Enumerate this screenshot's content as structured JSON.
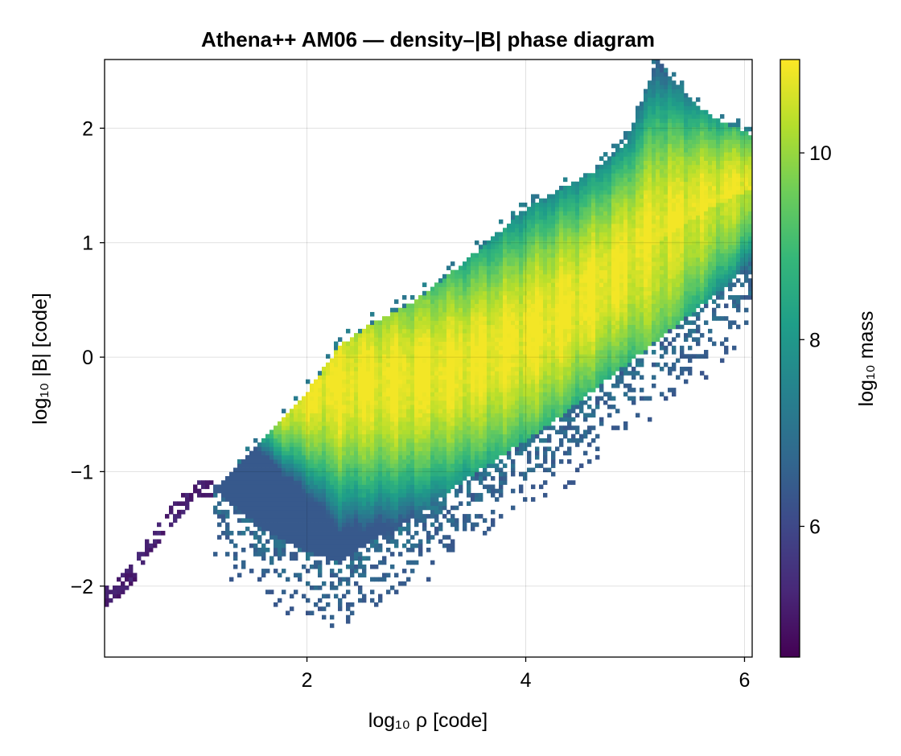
{
  "chart_data": {
    "type": "heatmap",
    "title": "Athena++ AM06 — density–|B| phase diagram",
    "xlabel": "log₁₀ ρ  [code]",
    "ylabel": "log₁₀ |B|  [code]",
    "xlim": [
      0.15,
      6.07
    ],
    "ylim": [
      -2.62,
      2.6
    ],
    "x_ticks": [
      2,
      4,
      6
    ],
    "x_tick_labels": [
      "2",
      "4",
      "6"
    ],
    "y_ticks": [
      -2,
      -1,
      0,
      1,
      2
    ],
    "y_tick_labels": [
      "−2",
      "−1",
      "0",
      "1",
      "2"
    ],
    "grid": true,
    "colormap": "viridis",
    "colorbar": {
      "label": "log₁₀ mass",
      "range": [
        4.6,
        11.0
      ],
      "ticks": [
        6,
        8,
        10
      ],
      "tick_labels": [
        "6",
        "8",
        "10"
      ]
    },
    "distribution": {
      "ridge_slope": 0.4,
      "ridge_intercept": -1.2,
      "peak_log_mass": 10.9,
      "upper_edge_points": [
        [
          1.2,
          -1.1
        ],
        [
          1.5,
          -0.8
        ],
        [
          2.0,
          -0.3
        ],
        [
          2.3,
          0.1
        ],
        [
          2.6,
          0.3
        ],
        [
          3.0,
          0.5
        ],
        [
          3.4,
          0.8
        ],
        [
          3.7,
          1.05
        ],
        [
          4.0,
          1.3
        ],
        [
          4.3,
          1.45
        ],
        [
          4.6,
          1.6
        ],
        [
          4.9,
          1.85
        ],
        [
          5.1,
          2.35
        ],
        [
          5.2,
          2.6
        ],
        [
          5.4,
          2.35
        ],
        [
          5.7,
          2.1
        ],
        [
          6.05,
          1.95
        ]
      ],
      "lower_edge_points": [
        [
          1.2,
          -1.2
        ],
        [
          1.6,
          -1.5
        ],
        [
          2.0,
          -1.7
        ],
        [
          2.3,
          -1.8
        ],
        [
          2.6,
          -1.6
        ],
        [
          3.0,
          -1.4
        ],
        [
          3.4,
          -1.1
        ],
        [
          3.8,
          -0.85
        ],
        [
          4.2,
          -0.6
        ],
        [
          4.6,
          -0.3
        ],
        [
          5.0,
          0.0
        ],
        [
          5.4,
          0.3
        ],
        [
          5.8,
          0.6
        ],
        [
          6.05,
          0.8
        ]
      ],
      "diffuse_tail_points": [
        [
          0.2,
          -2.1
        ],
        [
          0.4,
          -1.9
        ],
        [
          0.6,
          -1.6
        ],
        [
          0.8,
          -1.35
        ],
        [
          1.0,
          -1.15
        ]
      ]
    }
  }
}
